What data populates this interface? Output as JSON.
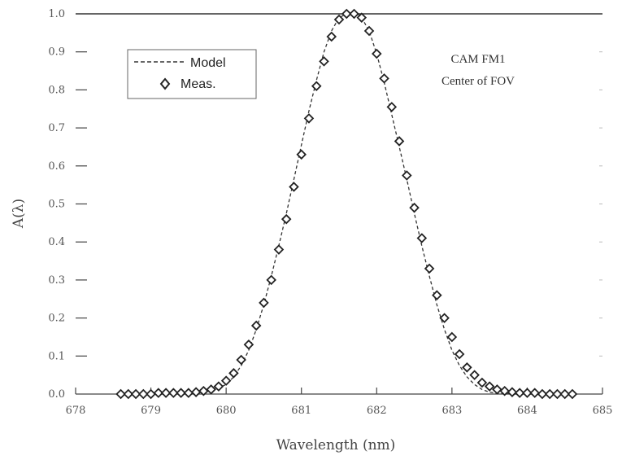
{
  "chart_data": {
    "type": "scatter",
    "xlabel": "Wavelength (nm)",
    "ylabel": "A(λ)",
    "xlim": [
      678,
      685
    ],
    "ylim": [
      0,
      1.0
    ],
    "x_ticks": [
      678,
      679,
      680,
      681,
      682,
      683,
      684,
      685
    ],
    "y_ticks": [
      0.0,
      0.1,
      0.2,
      0.3,
      0.4,
      0.5,
      0.6,
      0.7,
      0.8,
      0.9,
      1.0
    ],
    "x_tick_labels": [
      "678",
      "679",
      "680",
      "681",
      "682",
      "683",
      "684",
      "685"
    ],
    "y_tick_labels": [
      "0.0",
      "0.1",
      "0.2",
      "0.3",
      "0.4",
      "0.5",
      "0.6",
      "0.7",
      "0.8",
      "0.9",
      "1.0"
    ],
    "annotations": [
      "CAM FM1",
      "Center of FOV"
    ],
    "legend": {
      "placement": "top-left",
      "entries": [
        "Model",
        "Meas."
      ]
    },
    "series": [
      {
        "name": "Model",
        "style": "dashed-line",
        "color": "#333333",
        "x": [
          678.6,
          678.8,
          679.0,
          679.2,
          679.4,
          679.6,
          679.8,
          680.0,
          680.1,
          680.2,
          680.3,
          680.4,
          680.5,
          680.6,
          680.7,
          680.8,
          680.9,
          681.0,
          681.1,
          681.2,
          681.3,
          681.4,
          681.5,
          681.6,
          681.7,
          681.75,
          681.8,
          681.9,
          682.0,
          682.1,
          682.2,
          682.3,
          682.4,
          682.5,
          682.6,
          682.7,
          682.8,
          682.9,
          683.0,
          683.1,
          683.2,
          683.3,
          683.4,
          683.5,
          683.6,
          683.8,
          684.0,
          684.2,
          684.4,
          684.6
        ],
        "y": [
          0.0,
          0.0,
          0.0,
          0.0,
          0.0,
          0.003,
          0.008,
          0.025,
          0.045,
          0.075,
          0.115,
          0.17,
          0.235,
          0.31,
          0.39,
          0.475,
          0.565,
          0.655,
          0.745,
          0.825,
          0.9,
          0.955,
          0.99,
          1.0,
          1.0,
          1.0,
          0.99,
          0.955,
          0.895,
          0.82,
          0.735,
          0.65,
          0.565,
          0.475,
          0.39,
          0.31,
          0.235,
          0.17,
          0.115,
          0.075,
          0.045,
          0.025,
          0.012,
          0.005,
          0.002,
          0.0,
          0.0,
          0.0,
          0.0,
          0.0
        ]
      },
      {
        "name": "Meas.",
        "style": "open-diamond",
        "color": "#222222",
        "x": [
          678.6,
          678.7,
          678.8,
          678.9,
          679.0,
          679.1,
          679.2,
          679.3,
          679.4,
          679.5,
          679.6,
          679.7,
          679.8,
          679.9,
          680.0,
          680.1,
          680.2,
          680.3,
          680.4,
          680.5,
          680.6,
          680.7,
          680.8,
          680.9,
          681.0,
          681.1,
          681.2,
          681.3,
          681.4,
          681.5,
          681.6,
          681.7,
          681.8,
          681.9,
          682.0,
          682.1,
          682.2,
          682.3,
          682.4,
          682.5,
          682.6,
          682.7,
          682.8,
          682.9,
          683.0,
          683.1,
          683.2,
          683.3,
          683.4,
          683.5,
          683.6,
          683.7,
          683.8,
          683.9,
          684.0,
          684.1,
          684.2,
          684.3,
          684.4,
          684.5,
          684.6
        ],
        "y": [
          0.0,
          0.0,
          0.0,
          0.0,
          0.0,
          0.003,
          0.003,
          0.003,
          0.003,
          0.003,
          0.005,
          0.008,
          0.012,
          0.02,
          0.035,
          0.055,
          0.09,
          0.13,
          0.18,
          0.24,
          0.3,
          0.38,
          0.46,
          0.545,
          0.63,
          0.725,
          0.81,
          0.875,
          0.94,
          0.985,
          1.0,
          1.0,
          0.99,
          0.955,
          0.895,
          0.83,
          0.755,
          0.665,
          0.575,
          0.49,
          0.41,
          0.33,
          0.26,
          0.2,
          0.15,
          0.105,
          0.07,
          0.05,
          0.03,
          0.02,
          0.012,
          0.008,
          0.005,
          0.003,
          0.003,
          0.003,
          0.0,
          0.0,
          0.0,
          0.0,
          0.0
        ]
      }
    ]
  }
}
